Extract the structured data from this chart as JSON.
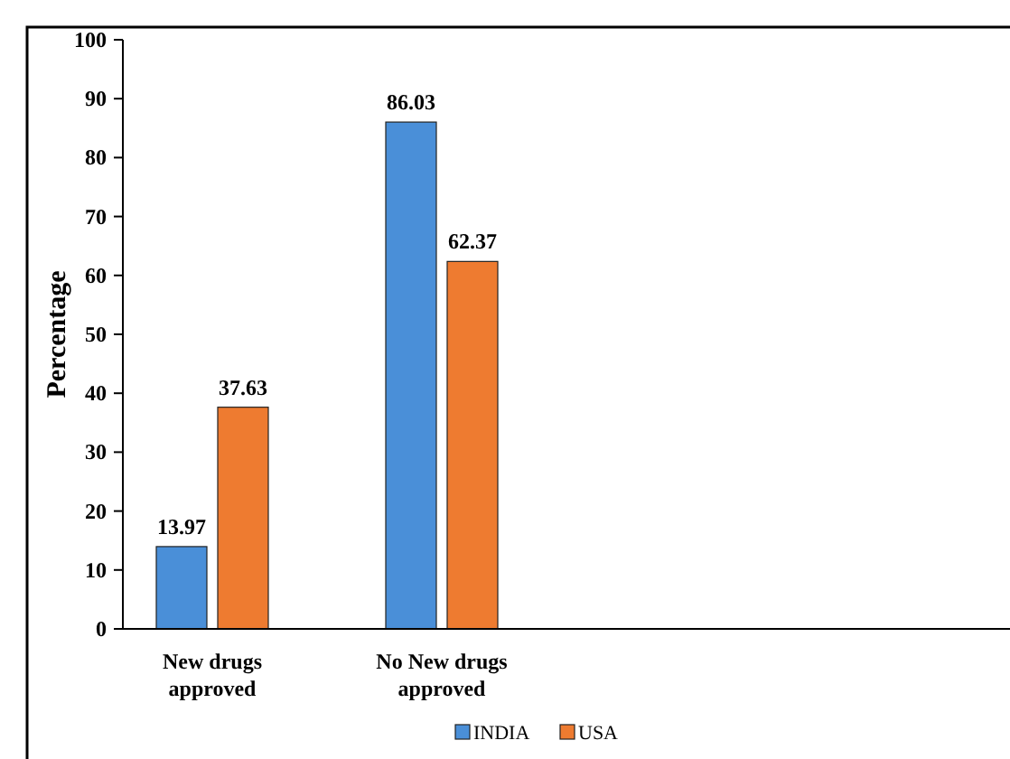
{
  "chart_data": {
    "type": "bar",
    "ylabel": "Percentage",
    "categories": [
      "New drugs approved",
      "No New drugs approved"
    ],
    "series": [
      {
        "name": "INDIA",
        "color": "#4a8fd8",
        "values": [
          13.97,
          86.03
        ]
      },
      {
        "name": "USA",
        "color": "#ee7b30",
        "values": [
          37.63,
          62.37
        ]
      }
    ],
    "ylim": [
      0,
      100
    ],
    "yticks": [
      0,
      10,
      20,
      30,
      40,
      50,
      60,
      70,
      80,
      90,
      100
    ],
    "grid": false,
    "data_labels": true,
    "legend": "bottom"
  }
}
